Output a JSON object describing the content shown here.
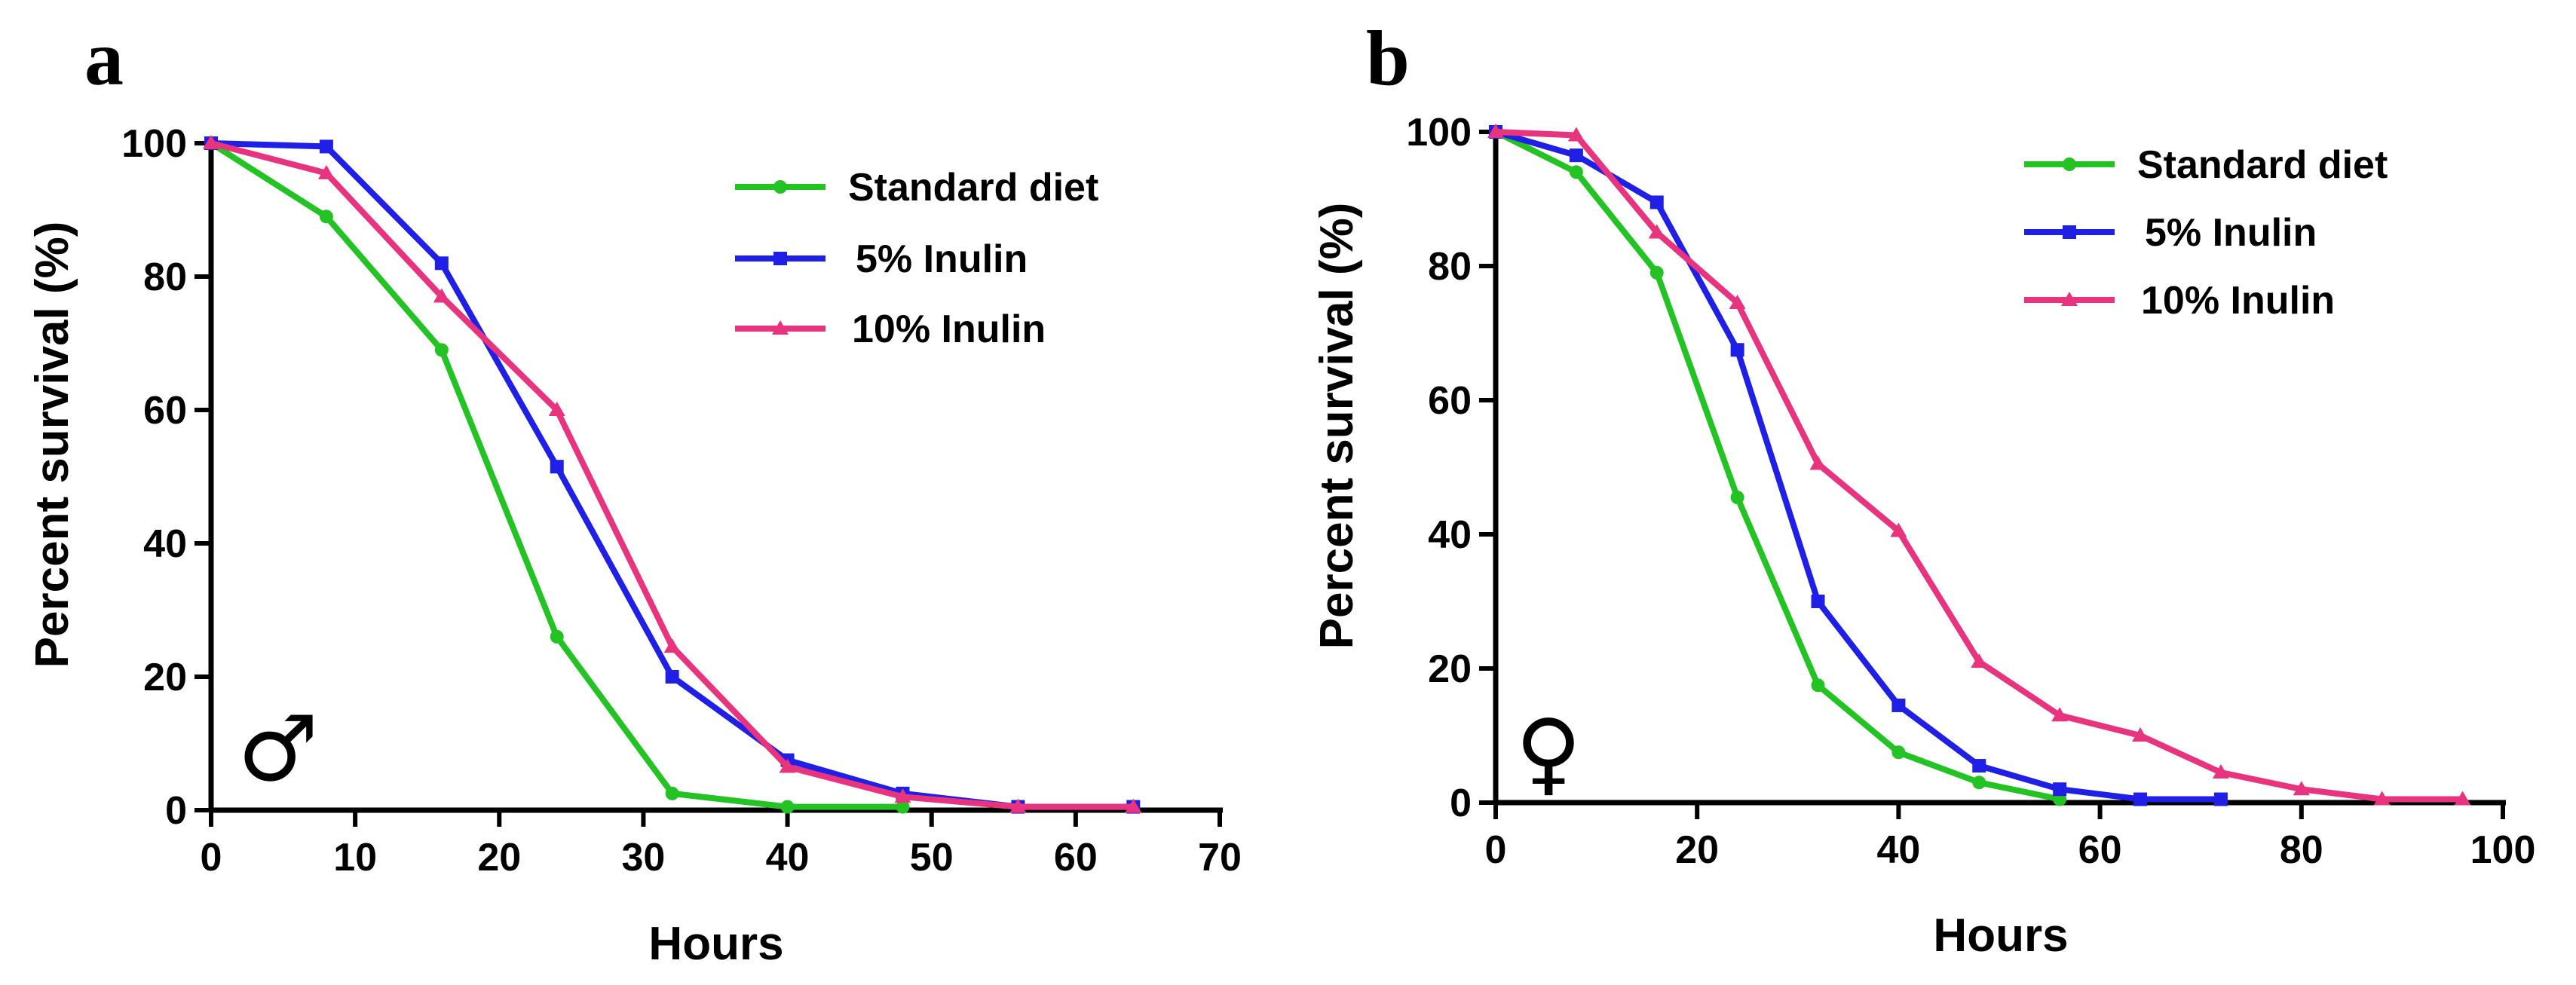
{
  "chart_data": [
    {
      "type": "line",
      "panel_label": "a",
      "sex_symbol": "♂",
      "xlabel": "Hours",
      "ylabel": "Percent survival (%)",
      "xlim": [
        0,
        70
      ],
      "ylim": [
        0,
        100
      ],
      "xticks": [
        0,
        10,
        20,
        30,
        40,
        50,
        60,
        70
      ],
      "yticks": [
        0,
        20,
        40,
        60,
        80,
        100
      ],
      "legend": "top-right",
      "series": [
        {
          "name": "Standard diet",
          "color": "#22c322",
          "marker": "circle",
          "x": [
            0,
            8,
            16,
            24,
            32,
            40,
            48
          ],
          "y": [
            100,
            89,
            69,
            26,
            2.5,
            0.5,
            0.5
          ]
        },
        {
          "name": "5% Inulin",
          "color": "#1f1fe6",
          "marker": "square",
          "x": [
            0,
            8,
            16,
            24,
            32,
            40,
            48,
            56,
            64
          ],
          "y": [
            100,
            99.5,
            82,
            51.5,
            20,
            7.5,
            2.5,
            0.5,
            0.5
          ]
        },
        {
          "name": "10% Inulin",
          "color": "#e8337f",
          "marker": "triangle",
          "x": [
            0,
            8,
            16,
            24,
            32,
            40,
            48,
            56,
            64
          ],
          "y": [
            100,
            95.5,
            77,
            60,
            24.5,
            6.5,
            2,
            0.5,
            0.5
          ]
        }
      ]
    },
    {
      "type": "line",
      "panel_label": "b",
      "sex_symbol": "♀",
      "xlabel": "Hours",
      "ylabel": "Percent survival (%)",
      "xlim": [
        0,
        100
      ],
      "ylim": [
        0,
        100
      ],
      "xticks": [
        0,
        20,
        40,
        60,
        80,
        100
      ],
      "yticks": [
        0,
        20,
        40,
        60,
        80,
        100
      ],
      "legend": "top-right",
      "series": [
        {
          "name": "Standard diet",
          "color": "#22c322",
          "marker": "circle",
          "x": [
            0,
            8,
            16,
            24,
            32,
            40,
            48,
            56
          ],
          "y": [
            100,
            94,
            79,
            45.5,
            17.5,
            7.5,
            3,
            0.5
          ]
        },
        {
          "name": "5% Inulin",
          "color": "#1f1fe6",
          "marker": "square",
          "x": [
            0,
            8,
            16,
            24,
            32,
            40,
            48,
            56,
            64,
            72
          ],
          "y": [
            100,
            96.5,
            89.5,
            67.5,
            30,
            14.5,
            5.5,
            2,
            0.5,
            0.5
          ]
        },
        {
          "name": "10% Inulin",
          "color": "#e8337f",
          "marker": "triangle",
          "x": [
            0,
            8,
            16,
            24,
            32,
            40,
            48,
            56,
            64,
            72,
            80,
            88,
            96
          ],
          "y": [
            100,
            99.5,
            85,
            74.5,
            50.5,
            40.5,
            21,
            13,
            10,
            4.5,
            2,
            0.5,
            0.5
          ]
        }
      ]
    }
  ]
}
